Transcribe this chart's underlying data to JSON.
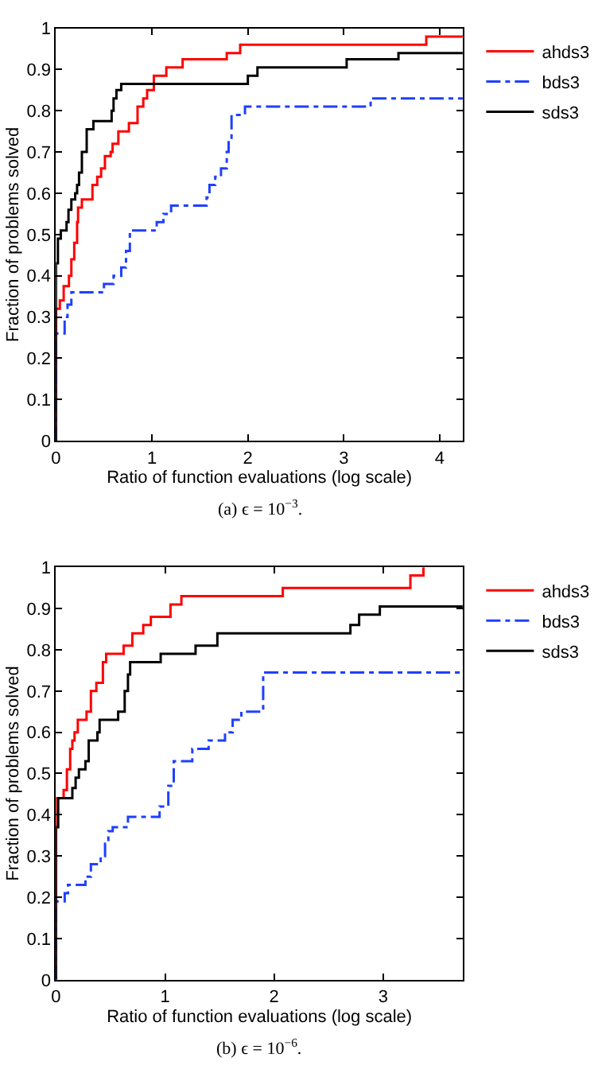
{
  "chart_data": [
    {
      "type": "step",
      "xlabel": "Ratio of function evaluations (log scale)",
      "ylabel": "Fraction of problems solved",
      "annotations": [
        "(a) ϵ = 10$^{−3}$."
      ],
      "xlim": [
        0,
        4.24
      ],
      "xticks": [
        0,
        1,
        2,
        3,
        4
      ],
      "ylim": [
        0,
        1
      ],
      "yticks": [
        0,
        0.1,
        0.2,
        0.3,
        0.4,
        0.5,
        0.6,
        0.7,
        0.8,
        0.9,
        1
      ],
      "legend": "top right",
      "marker": "none",
      "series": [
        {
          "name": "ahds3",
          "color": "#ff0000",
          "line_style": "solid",
          "x": [
            0,
            0,
            0.04,
            0.08,
            0.135,
            0.16,
            0.19,
            0.22,
            0.23,
            0.27,
            0.38,
            0.43,
            0.47,
            0.51,
            0.57,
            0.59,
            0.65,
            0.76,
            0.85,
            0.91,
            0.95,
            1.02,
            1.15,
            1.32,
            1.78,
            1.92,
            3.86,
            4.24
          ],
          "values": [
            0,
            0.32,
            0.34,
            0.375,
            0.4,
            0.44,
            0.48,
            0.53,
            0.565,
            0.585,
            0.62,
            0.64,
            0.66,
            0.69,
            0.7,
            0.72,
            0.75,
            0.77,
            0.81,
            0.83,
            0.85,
            0.885,
            0.905,
            0.925,
            0.94,
            0.96,
            0.98,
            0.98
          ]
        },
        {
          "name": "bds3",
          "color": "#1f3fff",
          "line_style": "dashdot",
          "x": [
            0,
            0,
            0.065,
            0.09,
            0.12,
            0.16,
            0.5,
            0.6,
            0.68,
            0.73,
            0.77,
            1.05,
            1.12,
            1.2,
            1.57,
            1.6,
            1.66,
            1.72,
            1.78,
            1.8,
            1.83,
            1.97,
            3.28,
            4.24
          ],
          "values": [
            0,
            0.26,
            0.26,
            0.3,
            0.33,
            0.36,
            0.38,
            0.4,
            0.42,
            0.46,
            0.51,
            0.53,
            0.55,
            0.57,
            0.59,
            0.62,
            0.64,
            0.66,
            0.7,
            0.73,
            0.79,
            0.81,
            0.83,
            0.83
          ]
        },
        {
          "name": "sds3",
          "color": "#000000",
          "line_style": "solid",
          "x": [
            0,
            0,
            0.02,
            0.05,
            0.11,
            0.13,
            0.16,
            0.2,
            0.22,
            0.24,
            0.27,
            0.32,
            0.39,
            0.58,
            0.6,
            0.63,
            0.68,
            2.0,
            2.1,
            3.03,
            3.57,
            4.24
          ],
          "values": [
            0,
            0.43,
            0.49,
            0.51,
            0.53,
            0.56,
            0.585,
            0.6,
            0.62,
            0.65,
            0.7,
            0.755,
            0.775,
            0.8,
            0.83,
            0.85,
            0.865,
            0.885,
            0.905,
            0.925,
            0.94,
            0.94
          ]
        }
      ]
    },
    {
      "type": "step",
      "xlabel": "Ratio of function evaluations (log scale)",
      "ylabel": "Fraction of problems solved",
      "annotations": [
        "(b) ϵ = 10$^{−6}$."
      ],
      "xlim": [
        0,
        3.73
      ],
      "xticks": [
        0,
        1,
        2,
        3
      ],
      "ylim": [
        0,
        1
      ],
      "yticks": [
        0,
        0.1,
        0.2,
        0.3,
        0.4,
        0.5,
        0.6,
        0.7,
        0.8,
        0.9,
        1
      ],
      "legend": "top right",
      "marker": "none",
      "series": [
        {
          "name": "ahds3",
          "color": "#ff0000",
          "line_style": "solid",
          "x": [
            0,
            0,
            0.07,
            0.1,
            0.13,
            0.15,
            0.17,
            0.2,
            0.28,
            0.32,
            0.37,
            0.43,
            0.46,
            0.62,
            0.7,
            0.8,
            0.87,
            1.05,
            1.15,
            2.08,
            3.25,
            3.37
          ],
          "values": [
            0,
            0.44,
            0.46,
            0.51,
            0.56,
            0.58,
            0.6,
            0.63,
            0.65,
            0.7,
            0.72,
            0.77,
            0.79,
            0.81,
            0.84,
            0.86,
            0.88,
            0.91,
            0.93,
            0.95,
            0.98,
            1.0
          ]
        },
        {
          "name": "bds3",
          "color": "#1f3fff",
          "line_style": "dashdot",
          "x": [
            0,
            0,
            0.05,
            0.08,
            0.11,
            0.27,
            0.32,
            0.41,
            0.45,
            0.48,
            0.52,
            0.66,
            0.95,
            1.03,
            1.08,
            1.25,
            1.4,
            1.55,
            1.62,
            1.7,
            1.9,
            3.73
          ],
          "values": [
            0,
            0.19,
            0.19,
            0.21,
            0.23,
            0.25,
            0.28,
            0.3,
            0.33,
            0.36,
            0.37,
            0.395,
            0.42,
            0.47,
            0.53,
            0.56,
            0.58,
            0.6,
            0.63,
            0.65,
            0.745,
            0.745
          ]
        },
        {
          "name": "sds3",
          "color": "#000000",
          "line_style": "solid",
          "x": [
            0,
            0,
            0.02,
            0.15,
            0.18,
            0.21,
            0.27,
            0.3,
            0.38,
            0.4,
            0.57,
            0.63,
            0.66,
            0.68,
            0.96,
            1.28,
            1.48,
            2.7,
            2.78,
            2.97,
            3.73
          ],
          "values": [
            0,
            0.37,
            0.44,
            0.465,
            0.49,
            0.51,
            0.53,
            0.58,
            0.6,
            0.63,
            0.65,
            0.7,
            0.74,
            0.77,
            0.79,
            0.81,
            0.84,
            0.86,
            0.885,
            0.905,
            0.905
          ]
        }
      ]
    }
  ]
}
